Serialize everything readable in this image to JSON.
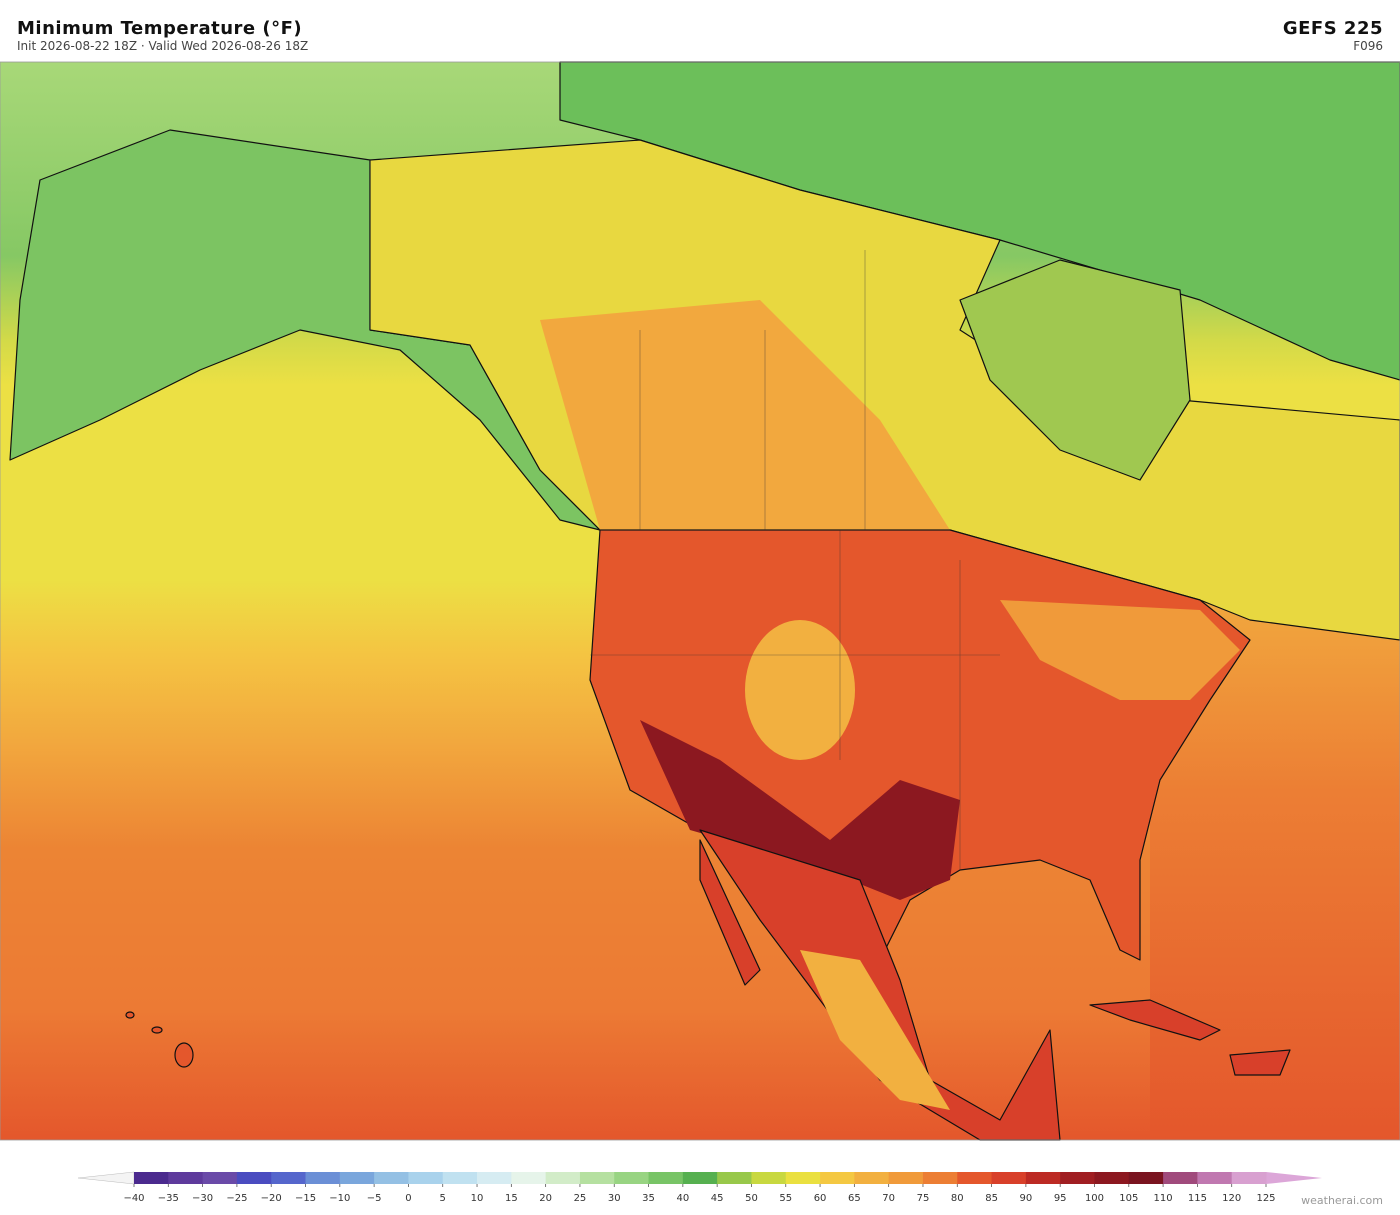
{
  "header": {
    "title": "Minimum Temperature  (°F)",
    "subtitle": "Init 2026-08-22 18Z  ·  Valid Wed 2026-08-26 18Z",
    "model": "GEFS  225",
    "forecast_hour": "F096"
  },
  "colorbar": {
    "ticks": [
      {
        "value": -40,
        "label": "−40"
      },
      {
        "value": -35,
        "label": "−35"
      },
      {
        "value": -30,
        "label": "−30"
      },
      {
        "value": -25,
        "label": "−25"
      },
      {
        "value": -20,
        "label": "−20"
      },
      {
        "value": -15,
        "label": "−15"
      },
      {
        "value": -10,
        "label": "−10"
      },
      {
        "value": -5,
        "label": "−5"
      },
      0,
      5,
      10,
      15,
      20,
      25,
      30,
      35,
      40,
      45,
      50,
      55,
      60,
      65,
      70,
      75,
      80,
      85,
      90,
      95,
      100,
      105,
      110,
      115,
      120,
      125
    ],
    "colors": [
      "#4b2a8e",
      "#5e3a9c",
      "#6a4aa8",
      "#4a4cc0",
      "#5566cc",
      "#6b8fd6",
      "#7aa6dc",
      "#94c0e4",
      "#a9d2ec",
      "#c0e1f0",
      "#d6ecf2",
      "#e6f4ea",
      "#d2ecc8",
      "#b5e0a0",
      "#98d482",
      "#78c466",
      "#56b050",
      "#98c84a",
      "#c8d840",
      "#eae040",
      "#f4c842",
      "#f2b040",
      "#f09a3a",
      "#ec7e34",
      "#e4572c",
      "#d8402a",
      "#bc2a24",
      "#a01e22",
      "#8c1820",
      "#7a1420",
      "#a04a7c",
      "#c078b0",
      "#d8a0d0"
    ],
    "under_color": "#f4f4f4",
    "over_color": "#dca6d8"
  },
  "footer": {
    "watermark": "weatherai.com"
  }
}
